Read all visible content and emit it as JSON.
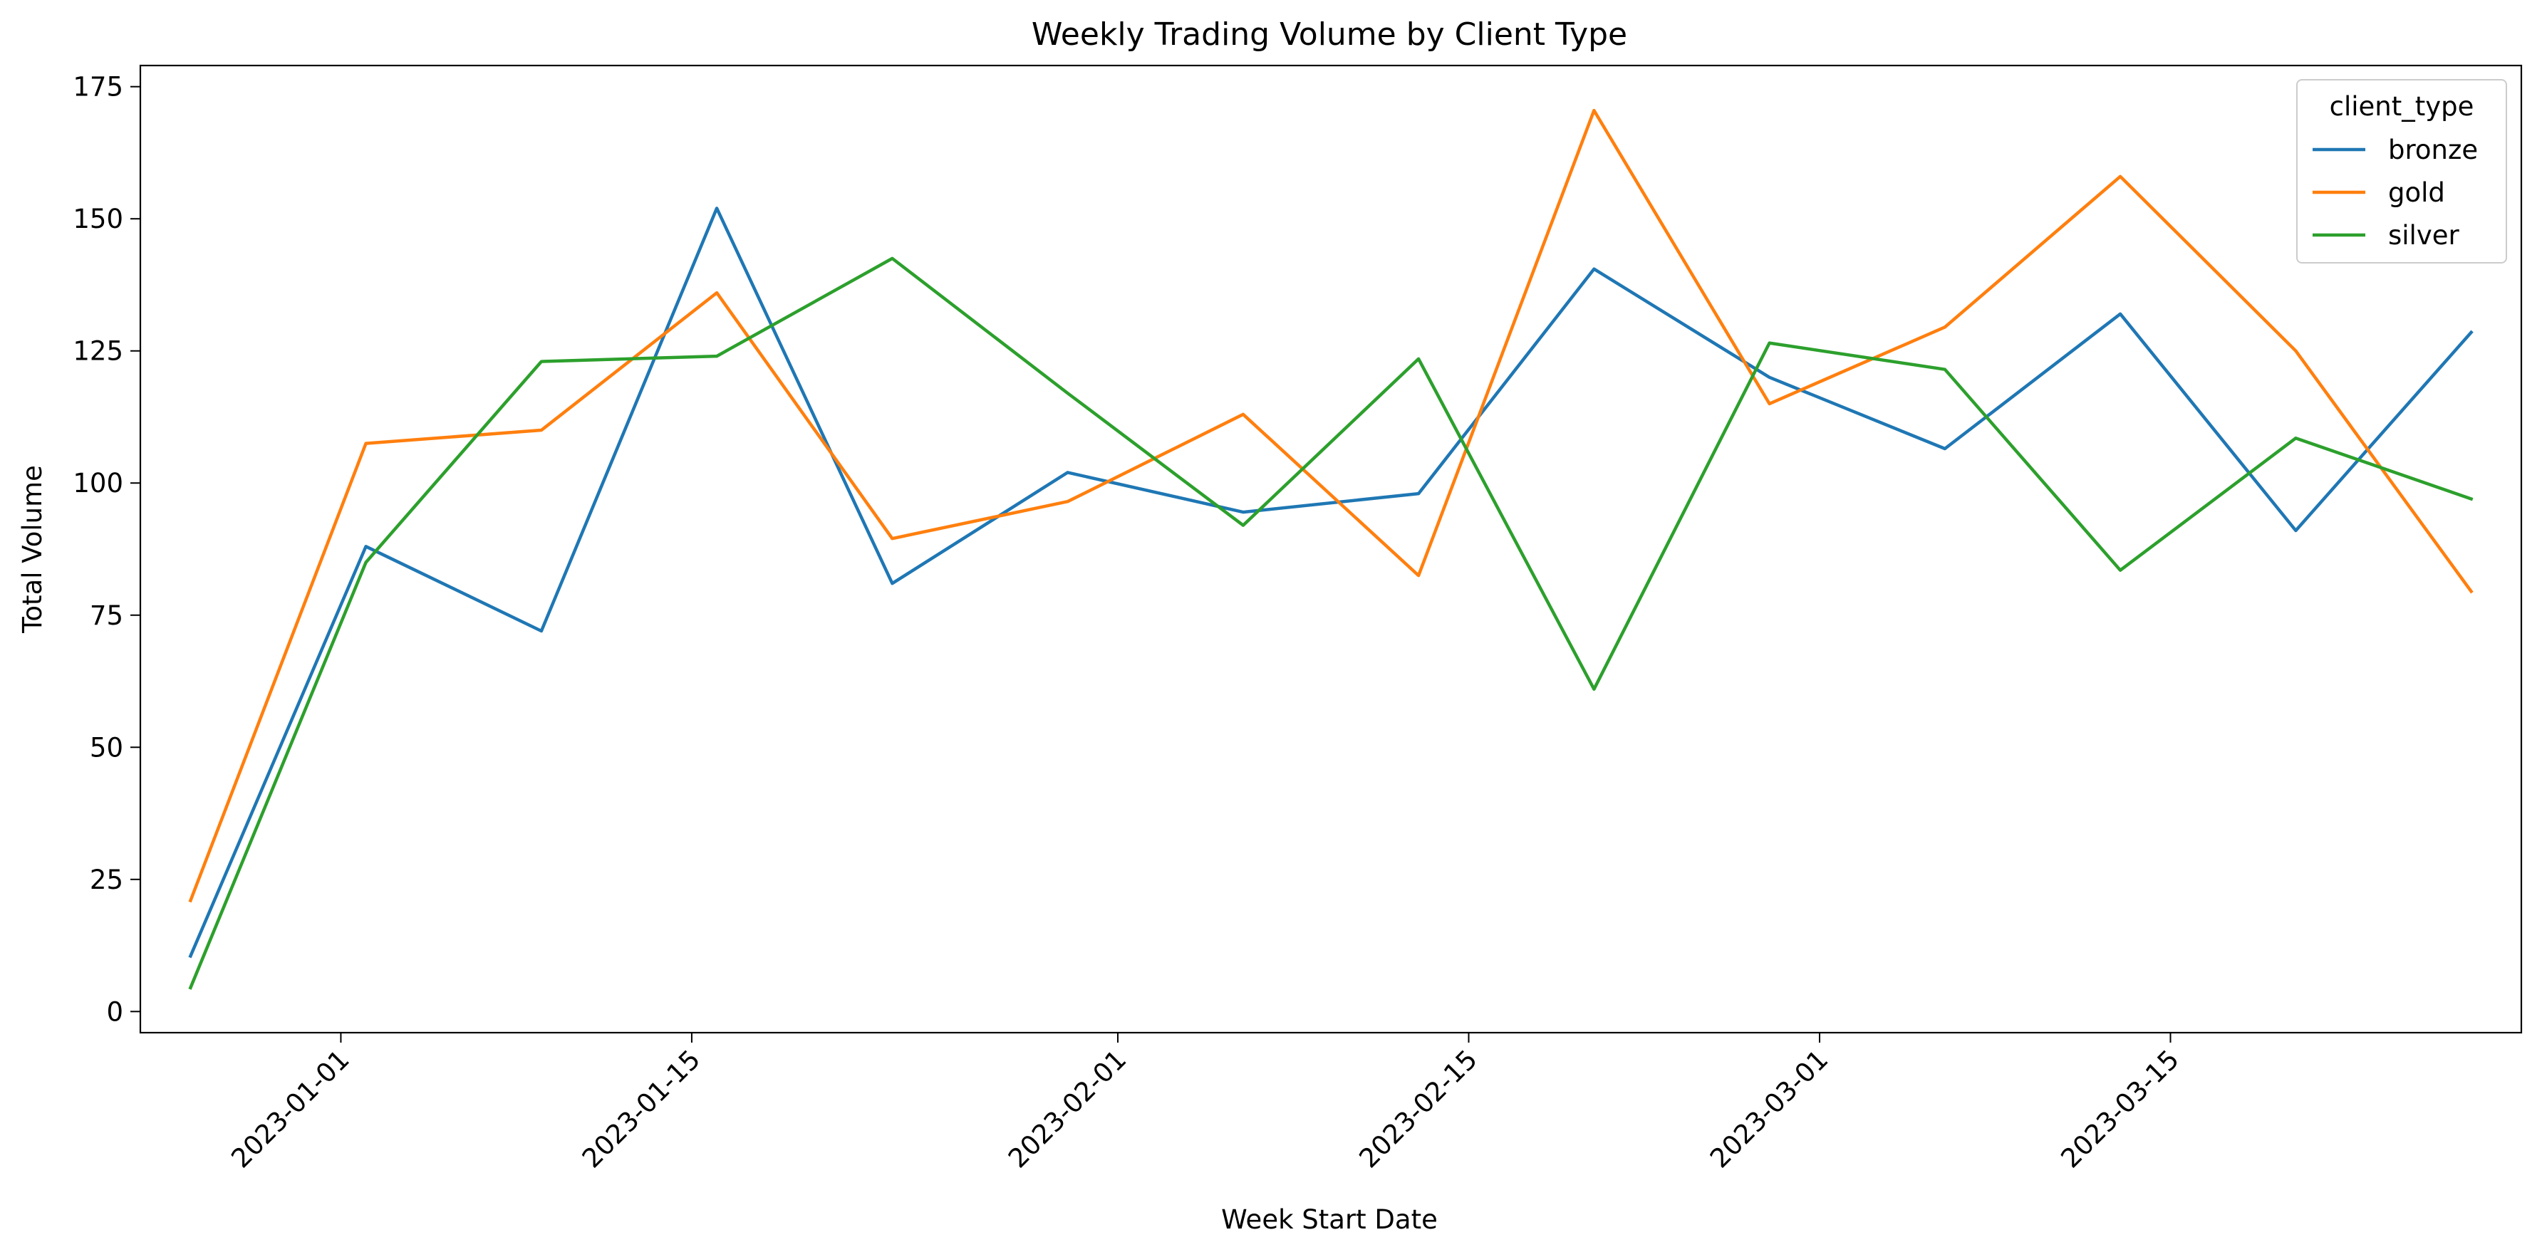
{
  "chart_data": {
    "type": "line",
    "title": "Weekly Trading Volume by Client Type",
    "xlabel": "Week Start Date",
    "ylabel": "Total Volume",
    "x": [
      "2022-12-26",
      "2023-01-02",
      "2023-01-09",
      "2023-01-16",
      "2023-01-23",
      "2023-01-30",
      "2023-02-06",
      "2023-02-13",
      "2023-02-20",
      "2023-02-27",
      "2023-03-06",
      "2023-03-13",
      "2023-03-20",
      "2023-03-27"
    ],
    "xlim": [
      "2022-12-24",
      "2023-03-29"
    ],
    "ylim": [
      -4,
      179
    ],
    "xticks": [
      "2023-01-01",
      "2023-01-15",
      "2023-02-01",
      "2023-02-15",
      "2023-03-01",
      "2023-03-15"
    ],
    "yticks": [
      0,
      25,
      50,
      75,
      100,
      125,
      150,
      175
    ],
    "grid": false,
    "legend": {
      "title": "client_type",
      "position": "top-right"
    },
    "series": [
      {
        "name": "bronze",
        "color": "#1f77b4",
        "values": [
          10.5,
          88,
          72,
          152,
          81,
          102,
          94.5,
          98,
          140.5,
          120,
          106.5,
          132,
          91,
          128.5
        ]
      },
      {
        "name": "gold",
        "color": "#ff7f0e",
        "values": [
          21,
          107.5,
          110,
          136,
          89.5,
          96.5,
          113,
          82.5,
          170.5,
          115,
          129.5,
          158,
          125,
          79.5
        ]
      },
      {
        "name": "silver",
        "color": "#2ca02c",
        "values": [
          4.5,
          85,
          123,
          124,
          142.5,
          117,
          92,
          123.5,
          61,
          126.5,
          121.5,
          83.5,
          108.5,
          97
        ]
      }
    ]
  }
}
